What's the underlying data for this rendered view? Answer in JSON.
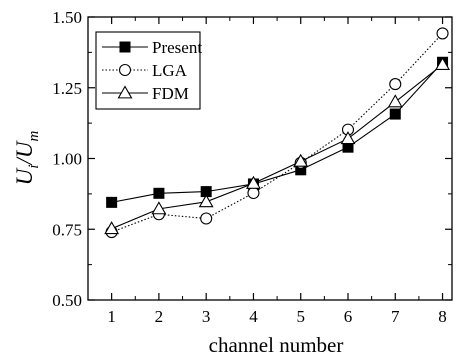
{
  "chart_data": {
    "type": "line",
    "xlabel": "channel number",
    "ylabel": {
      "main": "U",
      "sub1": "i",
      "slash": "/U",
      "sub2": "m"
    },
    "xlim": [
      0.5,
      8.2
    ],
    "ylim": [
      0.5,
      1.5
    ],
    "x_ticks": [
      1,
      2,
      3,
      4,
      5,
      6,
      7,
      8
    ],
    "x_tick_labels": [
      "1",
      "2",
      "3",
      "4",
      "5",
      "6",
      "7",
      "8"
    ],
    "y_ticks": [
      0.5,
      0.75,
      1.0,
      1.25,
      1.5
    ],
    "y_tick_labels": [
      "0.50",
      "0.75",
      "1.00",
      "1.25",
      "1.50"
    ],
    "grid": false,
    "legend_position": "top-left",
    "x": [
      1,
      2,
      3,
      4,
      5,
      6,
      7,
      8
    ],
    "series": [
      {
        "name": "Present",
        "marker": "filled-square",
        "line": "solid",
        "values": [
          0.845,
          0.877,
          0.883,
          0.91,
          0.96,
          1.04,
          1.157,
          1.34
        ]
      },
      {
        "name": "LGA",
        "marker": "open-circle",
        "line": "dotted",
        "values": [
          0.74,
          0.803,
          0.788,
          0.878,
          0.985,
          1.102,
          1.263,
          1.442
        ]
      },
      {
        "name": "FDM",
        "marker": "open-triangle",
        "line": "solid",
        "values": [
          0.752,
          0.822,
          0.847,
          0.912,
          0.99,
          1.07,
          1.2,
          1.332
        ]
      }
    ]
  }
}
